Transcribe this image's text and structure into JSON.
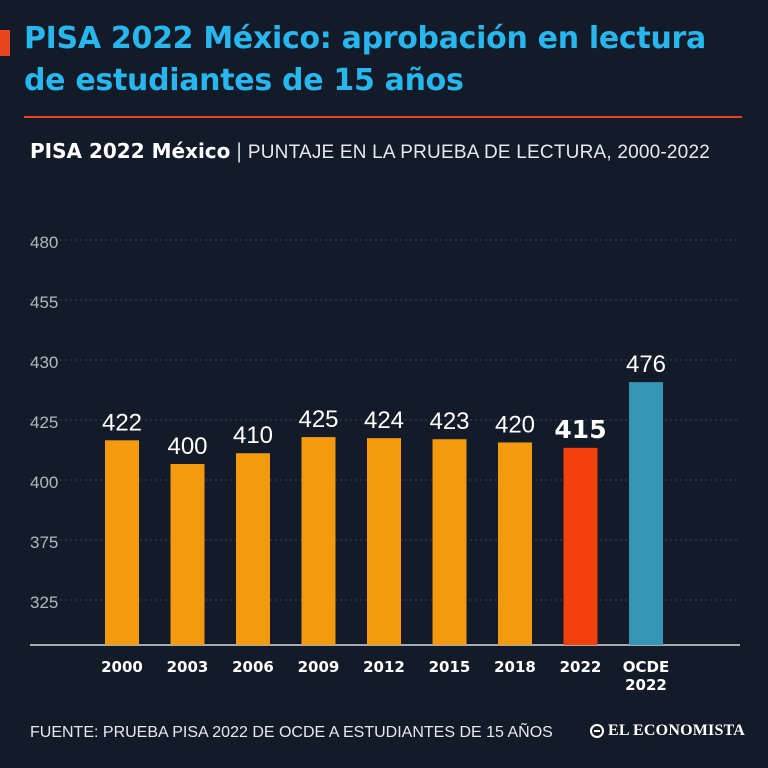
{
  "headline": "PISA 2022 México: aprobación en lectura de estudiantes de 15 años",
  "subtitle_bold": "PISA 2022 México",
  "subtitle_separator": "|",
  "subtitle_light": "PUNTAJE EN LA PRUEBA DE LECTURA, 2000-2022",
  "footer_source": "FUENTE: PRUEBA PISA 2022 DE OCDE A ESTUDIANTES DE 15 AÑOS",
  "brand": "EL ECONOMISTA",
  "brand_icon": "globe-icon",
  "colors": {
    "background": "#141b28",
    "headline": "#27b7ee",
    "accent": "#e8461e",
    "bar_mexico": "#f39a0f",
    "bar_2022": "#f4400d",
    "bar_ocde": "#3496b4",
    "grid": "#3a4250"
  },
  "chart_data": {
    "type": "bar",
    "categories": [
      "2000",
      "2003",
      "2006",
      "2009",
      "2012",
      "2015",
      "2018",
      "2022",
      "OCDE 2022"
    ],
    "values": [
      422,
      400,
      410,
      425,
      424,
      423,
      420,
      415,
      476
    ],
    "data_labels": [
      "422",
      "400",
      "410",
      "425",
      "424",
      "423",
      "420",
      "415",
      "476"
    ],
    "highlight_index": 7,
    "comparison_index": 8,
    "y_tick_labels": [
      "325",
      "375",
      "400",
      "425",
      "430",
      "455",
      "480"
    ],
    "grid": true,
    "title": "",
    "xlabel": "",
    "ylabel": ""
  }
}
